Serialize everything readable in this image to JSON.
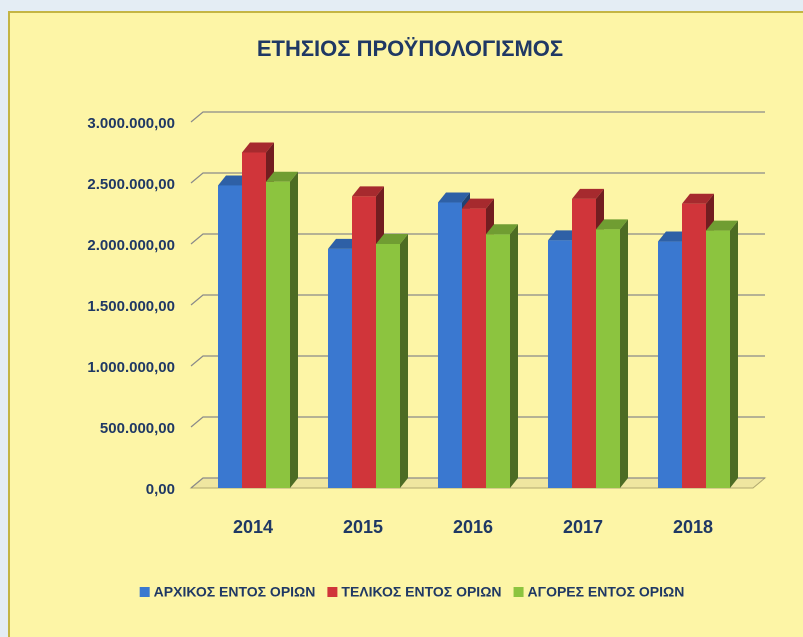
{
  "chart_data": {
    "type": "bar3d",
    "title": "ΕΤΗΣΙΟΣ ΠΡΟΫΠΟΛΟΓΙΣΜΟΣ",
    "categories": [
      "2014",
      "2015",
      "2016",
      "2017",
      "2018"
    ],
    "series": [
      {
        "name": "ΑΡΧΙΚΟΣ ΕΝΤΟΣ ΟΡΙΩΝ",
        "color": "#3a78d0",
        "values": [
          2480000,
          1960000,
          2340000,
          2030000,
          2020000
        ]
      },
      {
        "name": "ΤΕΛΙΚΟΣ ΕΝΤΟΣ ΟΡΙΩΝ",
        "color": "#d0353a",
        "values": [
          2750000,
          2390000,
          2290000,
          2370000,
          2330000
        ]
      },
      {
        "name": "ΑΓΟΡΕΣ ΕΝΤΟΣ ΟΡΙΩΝ",
        "color": "#8cc43f",
        "values": [
          2510000,
          2000000,
          2080000,
          2120000,
          2110000
        ]
      }
    ],
    "ylim": [
      0,
      3000000
    ],
    "yticks": [
      {
        "value": 0,
        "label": "0,00"
      },
      {
        "value": 500000,
        "label": "500.000,00"
      },
      {
        "value": 1000000,
        "label": "1.000.000,00"
      },
      {
        "value": 1500000,
        "label": "1.500.000,00"
      },
      {
        "value": 2000000,
        "label": "2.000.000,00"
      },
      {
        "value": 2500000,
        "label": "2.500.000,00"
      },
      {
        "value": 3000000,
        "label": "3.000.000,00"
      }
    ],
    "grid": true,
    "legend": "bottom"
  }
}
